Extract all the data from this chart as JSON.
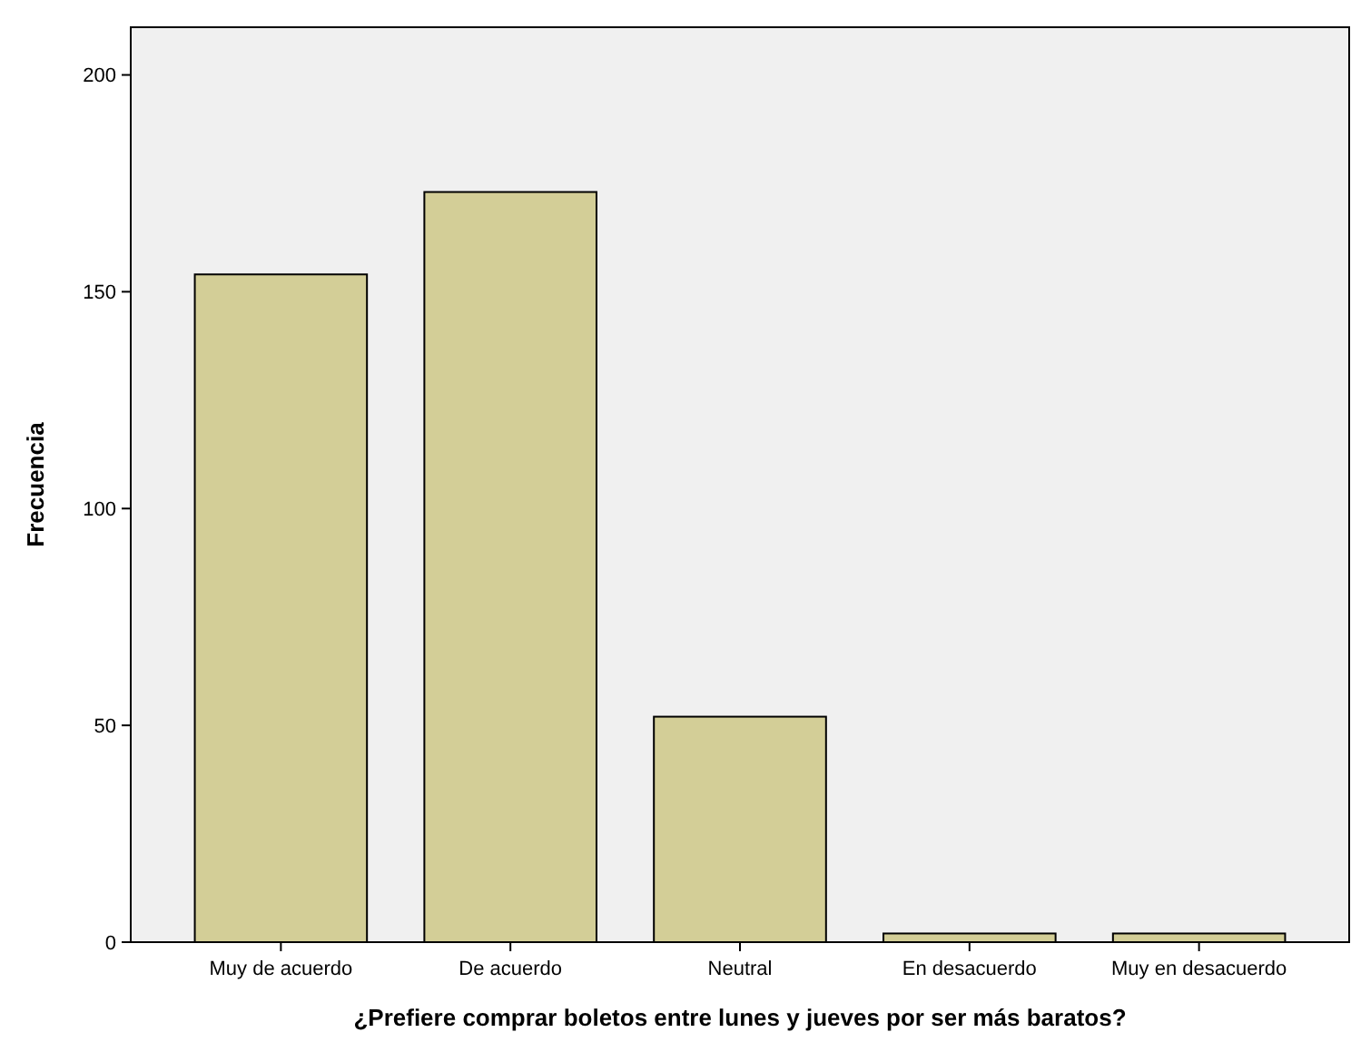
{
  "chart_data": {
    "type": "bar",
    "xlabel": "¿Prefiere comprar boletos entre lunes y jueves por ser más baratos?",
    "ylabel": "Frecuencia",
    "categories": [
      "Muy de acuerdo",
      "De acuerdo",
      "Neutral",
      "En desacuerdo",
      "Muy en desacuerdo"
    ],
    "values": [
      154,
      173,
      52,
      2,
      2
    ],
    "color": "#d3ce97",
    "ylim": [
      0,
      211
    ],
    "yticks": [
      0,
      50,
      100,
      150,
      200
    ],
    "grid": false
  }
}
